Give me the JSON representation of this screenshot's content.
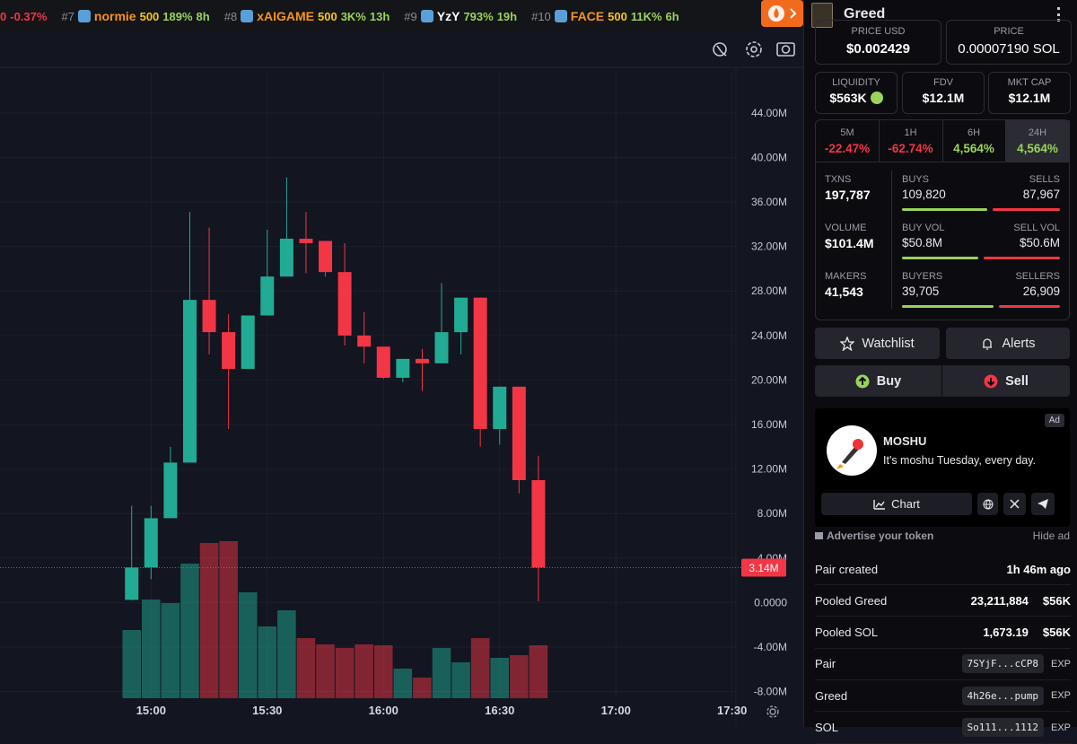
{
  "ticker": [
    {
      "rank": "0",
      "change": "-0.37%",
      "down": true
    },
    {
      "rank": "#7",
      "name": "normie",
      "boost": "500",
      "change": "189%",
      "age": "8h"
    },
    {
      "rank": "#8",
      "name": "xAIGAME",
      "boost": "500",
      "change": "3K%",
      "age": "13h"
    },
    {
      "rank": "#9",
      "name": "YzY",
      "change": "793%",
      "age": "19h",
      "plain": true
    },
    {
      "rank": "#10",
      "name": "FACE",
      "boost": "500",
      "change": "11K%",
      "age": "6h"
    }
  ],
  "chart": {
    "type": "candlestick",
    "up_color": "#22ab94",
    "down_color": "#f23645",
    "grid": true,
    "categories": [
      "14:55",
      "15:00",
      "15:05",
      "15:10",
      "15:15",
      "15:20",
      "15:25",
      "15:30",
      "15:35",
      "15:40",
      "15:45",
      "15:50",
      "15:55",
      "16:00",
      "16:05",
      "16:10",
      "16:15",
      "16:20",
      "16:25",
      "16:30",
      "16:35",
      "16:40"
    ],
    "open": [
      0.24,
      3.15,
      7.58,
      12.58,
      27.2,
      24.3,
      21.0,
      25.8,
      29.3,
      32.7,
      32.5,
      29.7,
      24.0,
      23.0,
      20.2,
      21.9,
      21.5,
      24.3,
      27.4,
      15.6,
      19.4,
      11.0
    ],
    "high": [
      8.7,
      8.7,
      14.0,
      35.1,
      33.7,
      25.9,
      25.8,
      33.5,
      38.2,
      35.1,
      32.5,
      32.3,
      26.1,
      23.0,
      21.9,
      22.8,
      28.7,
      27.4,
      27.4,
      19.4,
      19.4,
      13.2
    ],
    "low": [
      0.2,
      2.1,
      7.58,
      12.58,
      22.3,
      15.6,
      21.0,
      25.8,
      29.3,
      29.6,
      29.3,
      23.1,
      21.5,
      20.1,
      19.8,
      19.0,
      21.5,
      22.3,
      14.0,
      14.2,
      9.8,
      0.1
    ],
    "close": [
      3.15,
      7.58,
      12.58,
      27.2,
      24.3,
      21.0,
      25.8,
      29.3,
      32.7,
      32.3,
      29.7,
      24.0,
      23.0,
      20.2,
      21.9,
      21.5,
      24.3,
      27.4,
      15.6,
      19.4,
      11.0,
      3.14
    ],
    "volume": [
      76,
      110,
      106,
      150,
      173,
      175,
      118,
      80,
      98,
      67,
      60,
      56,
      60,
      59,
      33,
      23,
      56,
      40,
      67,
      45,
      48,
      59
    ],
    "ylim": [
      -8.6,
      47.7
    ],
    "yticks": [
      {
        "value": 44,
        "label": "44.00M"
      },
      {
        "value": 40,
        "label": "40.00M"
      },
      {
        "value": 36,
        "label": "36.00M"
      },
      {
        "value": 32,
        "label": "32.00M"
      },
      {
        "value": 28,
        "label": "28.00M"
      },
      {
        "value": 24,
        "label": "24.00M"
      },
      {
        "value": 20,
        "label": "20.00M"
      },
      {
        "value": 16,
        "label": "16.00M"
      },
      {
        "value": 12,
        "label": "12.00M"
      },
      {
        "value": 8,
        "label": "8.00M"
      },
      {
        "value": 4,
        "label": "4.00M"
      },
      {
        "value": 0,
        "label": "0.0000"
      },
      {
        "value": -4,
        "label": "-4.00M"
      },
      {
        "value": -8,
        "label": "-8.00M"
      }
    ],
    "xlim": [
      "14:21",
      "17:31"
    ],
    "xticks": [
      "15:00",
      "15:30",
      "16:00",
      "16:30",
      "17:00",
      "17:30"
    ],
    "last_price": {
      "value": 3.14,
      "label": "3.14M"
    }
  },
  "panel": {
    "token": "Greed",
    "price_usd": {
      "label": "PRICE USD",
      "value": "$0.002429"
    },
    "price_sol": {
      "label": "PRICE",
      "value": "0.00007190 SOL"
    },
    "metrics": [
      {
        "label": "LIQUIDITY",
        "value": "$563K"
      },
      {
        "label": "FDV",
        "value": "$12.1M"
      },
      {
        "label": "MKT CAP",
        "value": "$12.1M"
      }
    ],
    "timeframes": [
      {
        "label": "5M",
        "value": "-22.47%",
        "down": true
      },
      {
        "label": "1H",
        "value": "-62.74%",
        "down": true
      },
      {
        "label": "6H",
        "value": "4,564%"
      },
      {
        "label": "24H",
        "value": "4,564%",
        "active": true
      }
    ],
    "stats": [
      {
        "label": "TXNS",
        "value": "197,787",
        "a_label": "BUYS",
        "a": "109,820",
        "b_label": "SELLS",
        "b": "87,967"
      },
      {
        "label": "VOLUME",
        "value": "$101.4M",
        "a_label": "BUY VOL",
        "a": "$50.8M",
        "b_label": "SELL VOL",
        "b": "$50.6M"
      },
      {
        "label": "MAKERS",
        "value": "41,543",
        "a_label": "BUYERS",
        "a": "39,705",
        "b_label": "SELLERS",
        "b": "26,909"
      }
    ],
    "buttons": {
      "watchlist": "Watchlist",
      "alerts": "Alerts",
      "buy": "Buy",
      "sell": "Sell"
    },
    "ad": {
      "badge": "Ad",
      "name": "MOSHU",
      "text": "It's moshu Tuesday, every day.",
      "chart": "Chart"
    },
    "advertise": "Advertise your token",
    "hide_ad": "Hide ad",
    "rows": [
      {
        "label": "Pair created",
        "value": "1h 46m ago"
      },
      {
        "label": "Pooled Greed",
        "value": "23,211,884",
        "value2": "$56K"
      },
      {
        "label": "Pooled SOL",
        "value": "1,673.19",
        "value2": "$56K"
      },
      {
        "label": "Pair",
        "address": "7SYjF...cCP8",
        "link": "EXP"
      },
      {
        "label": "Greed",
        "address": "4h26e...pump",
        "link": "EXP"
      },
      {
        "label": "SOL",
        "address": "So111...1112",
        "link": "EXP"
      }
    ]
  }
}
